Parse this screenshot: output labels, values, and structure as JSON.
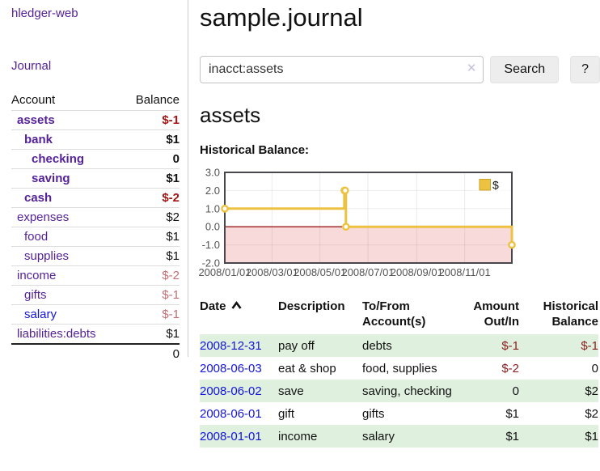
{
  "app": {
    "title": "hledger-web"
  },
  "sidebar": {
    "journal_label": "Journal",
    "accounts": {
      "col_account": "Account",
      "col_balance": "Balance",
      "rows": [
        {
          "name": "assets",
          "level": 1,
          "bold": true,
          "link_color": "purple",
          "balance": "$-1",
          "balance_class": "neg-strong"
        },
        {
          "name": "bank",
          "level": 2,
          "bold": true,
          "link_color": "purple",
          "balance": "$1",
          "balance_class": ""
        },
        {
          "name": "checking",
          "level": 3,
          "bold": true,
          "link_color": "purple",
          "balance": "0",
          "balance_class": ""
        },
        {
          "name": "saving",
          "level": 3,
          "bold": true,
          "link_color": "purple",
          "balance": "$1",
          "balance_class": ""
        },
        {
          "name": "cash",
          "level": 2,
          "bold": true,
          "link_color": "purple",
          "balance": "$-2",
          "balance_class": "neg-strong"
        },
        {
          "name": "expenses",
          "level": 1,
          "bold": false,
          "link_color": "purple",
          "balance": "$2",
          "balance_class": ""
        },
        {
          "name": "food",
          "level": 2,
          "bold": false,
          "link_color": "purple",
          "balance": "$1",
          "balance_class": ""
        },
        {
          "name": "supplies",
          "level": 2,
          "bold": false,
          "link_color": "purple",
          "balance": "$1",
          "balance_class": ""
        },
        {
          "name": "income",
          "level": 1,
          "bold": false,
          "link_color": "purple",
          "balance": "$-2",
          "balance_class": "neg-soft"
        },
        {
          "name": "gifts",
          "level": 2,
          "bold": false,
          "link_color": "purple",
          "balance": "$-1",
          "balance_class": "neg-soft"
        },
        {
          "name": "salary",
          "level": 2,
          "bold": false,
          "link_color": "blue",
          "balance": "$-1",
          "balance_class": "neg-soft"
        },
        {
          "name": "liabilities:debts",
          "level": 1,
          "bold": false,
          "link_color": "purple",
          "balance": "$1",
          "balance_class": ""
        }
      ],
      "total": "0"
    }
  },
  "main": {
    "title": "sample.journal",
    "search": {
      "value": "inacct:assets",
      "clear_icon": "✕",
      "button_label": "Search",
      "help_label": "?"
    },
    "account_heading": "assets",
    "chart_label": "Historical Balance:",
    "chart_data": {
      "type": "line",
      "step": true,
      "ylim": [
        -2,
        3
      ],
      "yticks": [
        "3.0",
        "2.0",
        "1.0",
        "0.0",
        "-1.0",
        "-2.0"
      ],
      "xticks": [
        "2008/01/01",
        "2008/03/01",
        "2008/05/01",
        "2008/07/01",
        "2008/09/01",
        "2008/11/01"
      ],
      "series": [
        {
          "name": "$",
          "color": "#edc240",
          "points": [
            {
              "date": "2008-01-01",
              "value": 1
            },
            {
              "date": "2008-06-01",
              "value": 2
            },
            {
              "date": "2008-06-02",
              "value": 2
            },
            {
              "date": "2008-06-03",
              "value": 0
            },
            {
              "date": "2008-12-31",
              "value": -1
            }
          ]
        }
      ],
      "legend": "$",
      "legend_position": "top-right",
      "negative_region_color": "#f9dada",
      "zero_line_color": "#9b1c1c",
      "grid": true
    },
    "register": {
      "headers": {
        "date": "Date",
        "description": "Description",
        "accounts": "To/From Account(s)",
        "amount": "Amount Out/In",
        "balance": "Historical Balance"
      },
      "rows": [
        {
          "date": "2008-12-31",
          "description": "pay off",
          "accounts": "debts",
          "amount": "$-1",
          "amount_class": "neg",
          "balance": "$-1",
          "balance_class": "neg"
        },
        {
          "date": "2008-06-03",
          "description": "eat & shop",
          "accounts": "food, supplies",
          "amount": "$-2",
          "amount_class": "neg",
          "balance": "0",
          "balance_class": ""
        },
        {
          "date": "2008-06-02",
          "description": "save",
          "accounts": "saving, checking",
          "amount": "0",
          "amount_class": "",
          "balance": "$2",
          "balance_class": ""
        },
        {
          "date": "2008-06-01",
          "description": "gift",
          "accounts": "gifts",
          "amount": "$1",
          "amount_class": "",
          "balance": "$2",
          "balance_class": ""
        },
        {
          "date": "2008-01-01",
          "description": "income",
          "accounts": "salary",
          "amount": "$1",
          "amount_class": "",
          "balance": "$1",
          "balance_class": ""
        }
      ]
    }
  }
}
